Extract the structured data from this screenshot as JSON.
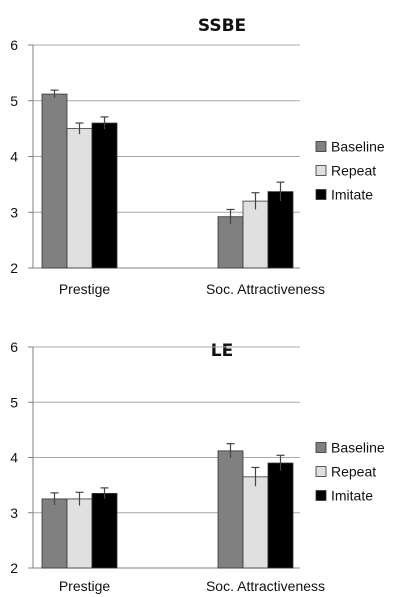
{
  "chart_data": [
    {
      "type": "bar",
      "title": "SSBE",
      "categories": [
        "Prestige",
        "Soc. Attractiveness"
      ],
      "ylim": [
        2,
        6
      ],
      "yticks": [
        2,
        3,
        4,
        5,
        6
      ],
      "grid": true,
      "legend_position": "right",
      "series": [
        {
          "name": "Baseline",
          "color": "#808080",
          "values": [
            5.12,
            2.92
          ],
          "errors": [
            0.07,
            0.13
          ]
        },
        {
          "name": "Repeat",
          "color": "#e0e0e0",
          "values": [
            4.5,
            3.2
          ],
          "errors": [
            0.1,
            0.15
          ]
        },
        {
          "name": "Imitate",
          "color": "#000000",
          "values": [
            4.6,
            3.37
          ],
          "errors": [
            0.11,
            0.17
          ]
        }
      ]
    },
    {
      "type": "bar",
      "title": "LE",
      "categories": [
        "Prestige",
        "Soc. Attractiveness"
      ],
      "ylim": [
        2,
        6
      ],
      "yticks": [
        2,
        3,
        4,
        5,
        6
      ],
      "grid": true,
      "legend_position": "right",
      "series": [
        {
          "name": "Baseline",
          "color": "#808080",
          "values": [
            3.25,
            4.12
          ],
          "errors": [
            0.11,
            0.13
          ]
        },
        {
          "name": "Repeat",
          "color": "#e0e0e0",
          "values": [
            3.25,
            3.65
          ],
          "errors": [
            0.12,
            0.17
          ]
        },
        {
          "name": "Imitate",
          "color": "#000000",
          "values": [
            3.35,
            3.9
          ],
          "errors": [
            0.1,
            0.14
          ]
        }
      ]
    }
  ]
}
